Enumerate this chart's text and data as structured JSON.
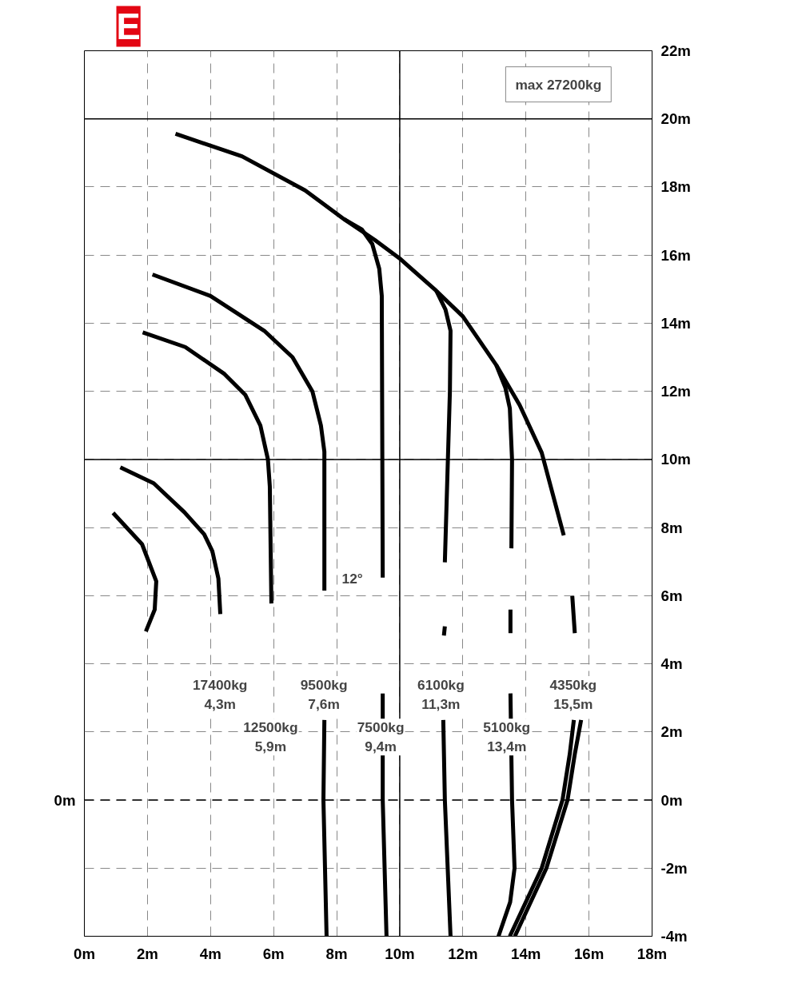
{
  "chart_data": {
    "type": "line",
    "title": "E",
    "series": [
      {
        "color": "#000000",
        "x": [
          2.89,
          5.0,
          7.0,
          8.24,
          9.2,
          10.0,
          11.16,
          12.0,
          13.06,
          13.8,
          14.5,
          15.2,
          null,
          15.47,
          15.55,
          null,
          15.52,
          15.39,
          15.16,
          14.5,
          13.49
        ],
        "values": [
          19.56,
          18.9,
          17.9,
          17.05,
          16.45,
          15.9,
          14.95,
          14.2,
          12.77,
          11.6,
          10.2,
          7.77,
          null,
          5.99,
          4.9,
          null,
          2.35,
          1.35,
          0.0,
          -2.0,
          -4.0
        ]
      },
      {
        "color": "#000000",
        "x": [
          15.75,
          15.55,
          15.32,
          14.65,
          13.65
        ],
        "values": [
          2.35,
          1.35,
          0.0,
          -2.0,
          -4.0
        ]
      },
      {
        "color": "#000000",
        "x": [
          1.14,
          2.2,
          3.17,
          3.8,
          4.06,
          4.25,
          4.31
        ],
        "values": [
          9.77,
          9.3,
          8.45,
          7.8,
          7.3,
          6.5,
          5.46
        ]
      },
      {
        "color": "#000000",
        "x": [
          1.85,
          3.2,
          4.44,
          5.1,
          5.58,
          5.82,
          5.88,
          5.93
        ],
        "values": [
          13.73,
          13.3,
          12.51,
          11.9,
          11.0,
          10.0,
          9.21,
          5.77
        ]
      },
      {
        "color": "#000000",
        "x": [
          2.16,
          4.0,
          5.7,
          6.6,
          7.23,
          7.5,
          7.61,
          7.61,
          null,
          7.61,
          7.58,
          7.68
        ],
        "values": [
          15.43,
          14.8,
          13.78,
          13.0,
          12.0,
          11.0,
          10.23,
          6.15,
          null,
          2.35,
          0.0,
          -4.0
        ]
      },
      {
        "color": "#000000",
        "x": [
          8.24,
          8.8,
          9.13,
          9.35,
          9.43,
          9.46,
          null,
          9.46,
          9.46,
          9.58
        ],
        "values": [
          17.05,
          16.75,
          16.32,
          15.6,
          14.8,
          6.53,
          null,
          3.13,
          0.0,
          -4.0
        ]
      },
      {
        "color": "#000000",
        "x": [
          11.16,
          11.45,
          11.61,
          11.59,
          11.43,
          null,
          11.43,
          11.4,
          null,
          11.38,
          11.43,
          11.61
        ],
        "values": [
          14.95,
          14.4,
          13.78,
          12.0,
          6.98,
          null,
          5.1,
          4.83,
          null,
          2.35,
          0.0,
          -4.0
        ]
      },
      {
        "color": "#000000",
        "x": [
          13.06,
          13.35,
          13.49,
          13.56,
          13.54,
          null,
          13.51,
          13.51,
          null,
          13.51,
          13.56,
          13.64,
          13.5,
          13.13
        ],
        "values": [
          12.77,
          12.1,
          11.5,
          10.0,
          7.39,
          null,
          5.59,
          4.9,
          null,
          3.13,
          0.0,
          -2.0,
          -3.0,
          -4.0
        ]
      },
      {
        "color": "#000000",
        "x": [
          0.91,
          1.83,
          2.28,
          2.23,
          1.95
        ],
        "values": [
          8.43,
          7.51,
          6.42,
          5.59,
          4.95
        ]
      },
      {
        "color": "#000000",
        "line_style": "solid",
        "x": [
          0,
          18
        ],
        "values": [
          20,
          20
        ]
      },
      {
        "color": "#000000",
        "line_style": "solid",
        "x": [
          0,
          18
        ],
        "values": [
          10,
          10
        ]
      },
      {
        "color": "#000000",
        "line_style": "solid",
        "x": [
          10,
          10
        ],
        "values": [
          -4,
          22
        ]
      },
      {
        "color": "#000000",
        "line_style": "dashed",
        "x": [
          0,
          18
        ],
        "values": [
          0,
          0
        ]
      }
    ],
    "annotations": [
      "17400kg\n4,3m",
      "12500kg\n5,9m",
      "9500kg\n7,6m",
      "7500kg\n9,4m",
      "6100kg\n11,3m",
      "5100kg\n13,4m",
      "4350kg\n15,5m",
      "12°",
      "max 27200kg",
      "0m"
    ],
    "xlim": [
      0,
      18
    ],
    "xticks": [
      {
        "value": 0,
        "label": "0m"
      },
      {
        "value": 2,
        "label": "2m"
      },
      {
        "value": 4,
        "label": "4m"
      },
      {
        "value": 6,
        "label": "6m"
      },
      {
        "value": 8,
        "label": "8m"
      },
      {
        "value": 10,
        "label": "10m"
      },
      {
        "value": 12,
        "label": "12m"
      },
      {
        "value": 14,
        "label": "14m"
      },
      {
        "value": 16,
        "label": "16m"
      },
      {
        "value": 18,
        "label": "18m"
      }
    ],
    "ylim": [
      -4,
      22
    ],
    "yticks": [
      {
        "value": -4,
        "label": "-4m"
      },
      {
        "value": -2,
        "label": "-2m"
      },
      {
        "value": 0,
        "label": "0m"
      },
      {
        "value": 2,
        "label": "2m"
      },
      {
        "value": 4,
        "label": "4m"
      },
      {
        "value": 6,
        "label": "6m"
      },
      {
        "value": 8,
        "label": "8m"
      },
      {
        "value": 10,
        "label": "10m"
      },
      {
        "value": 12,
        "label": "12m"
      },
      {
        "value": 14,
        "label": "14m"
      },
      {
        "value": 16,
        "label": "16m"
      },
      {
        "value": 18,
        "label": "18m"
      },
      {
        "value": 20,
        "label": "20m"
      },
      {
        "value": 22,
        "label": "22m"
      }
    ],
    "grid": true,
    "line_style": "solid",
    "marker": "none"
  }
}
